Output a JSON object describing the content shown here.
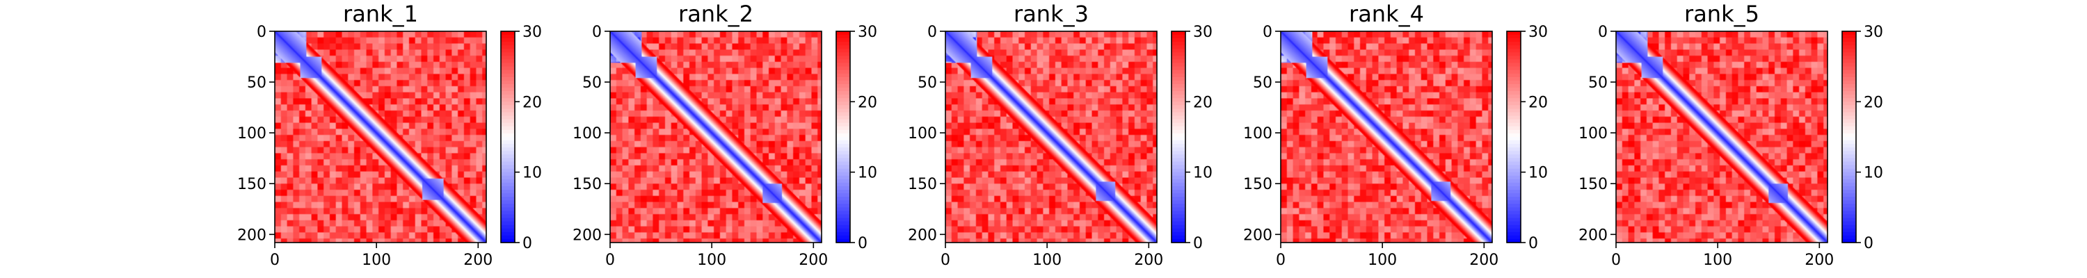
{
  "figure": {
    "background": "#ffffff"
  },
  "colormap": {
    "name": "bwr",
    "vmin": 0,
    "vmax": 30,
    "low_color": "#0000ff",
    "mid_color": "#ffffff",
    "high_color": "#ff0000",
    "ticks": [
      "0",
      "10",
      "20",
      "30"
    ]
  },
  "chart_data": [
    {
      "type": "heatmap",
      "title": "rank_1",
      "size": 208,
      "xlim": [
        0,
        208
      ],
      "ylim": [
        208,
        0
      ],
      "xticks": [
        "0",
        "100",
        "200"
      ],
      "yticks": [
        "0",
        "50",
        "100",
        "150",
        "200"
      ],
      "colorbar": {
        "vmin": 0,
        "vmax": 30,
        "ticks": [
          "0",
          "10",
          "20",
          "30"
        ]
      },
      "domains": [
        [
          0,
          30
        ],
        [
          25,
          45
        ],
        [
          145,
          165
        ]
      ],
      "diagonal_value": 2,
      "band_width": 6,
      "off_diagonal_value": 30
    },
    {
      "type": "heatmap",
      "title": "rank_2",
      "size": 208,
      "xlim": [
        0,
        208
      ],
      "ylim": [
        208,
        0
      ],
      "xticks": [
        "0",
        "100",
        "200"
      ],
      "yticks": [
        "0",
        "50",
        "100",
        "150",
        "200"
      ],
      "colorbar": {
        "vmin": 0,
        "vmax": 30,
        "ticks": [
          "0",
          "10",
          "20",
          "30"
        ]
      },
      "domains": [
        [
          0,
          30
        ],
        [
          25,
          45
        ],
        [
          150,
          168
        ]
      ],
      "diagonal_value": 2,
      "band_width": 6,
      "off_diagonal_value": 30
    },
    {
      "type": "heatmap",
      "title": "rank_3",
      "size": 208,
      "xlim": [
        0,
        208
      ],
      "ylim": [
        208,
        0
      ],
      "xticks": [
        "0",
        "100",
        "200"
      ],
      "yticks": [
        "0",
        "50",
        "100",
        "150",
        "200"
      ],
      "colorbar": {
        "vmin": 0,
        "vmax": 30,
        "ticks": [
          "0",
          "10",
          "20",
          "30"
        ]
      },
      "domains": [
        [
          0,
          30
        ],
        [
          25,
          45
        ],
        [
          148,
          166
        ]
      ],
      "diagonal_value": 2,
      "band_width": 6,
      "off_diagonal_value": 30
    },
    {
      "type": "heatmap",
      "title": "rank_4",
      "size": 208,
      "xlim": [
        0,
        208
      ],
      "ylim": [
        208,
        0
      ],
      "xticks": [
        "0",
        "100",
        "200"
      ],
      "yticks": [
        "0",
        "50",
        "100",
        "150",
        "200"
      ],
      "colorbar": {
        "vmin": 0,
        "vmax": 30,
        "ticks": [
          "0",
          "10",
          "20",
          "30"
        ]
      },
      "domains": [
        [
          0,
          30
        ],
        [
          25,
          45
        ],
        [
          148,
          166
        ]
      ],
      "diagonal_value": 2,
      "band_width": 6,
      "off_diagonal_value": 30
    },
    {
      "type": "heatmap",
      "title": "rank_5",
      "size": 208,
      "xlim": [
        0,
        208
      ],
      "ylim": [
        208,
        0
      ],
      "xticks": [
        "0",
        "100",
        "200"
      ],
      "yticks": [
        "0",
        "50",
        "100",
        "150",
        "200"
      ],
      "colorbar": {
        "vmin": 0,
        "vmax": 30,
        "ticks": [
          "0",
          "10",
          "20",
          "30"
        ]
      },
      "domains": [
        [
          0,
          30
        ],
        [
          25,
          45
        ],
        [
          150,
          168
        ]
      ],
      "diagonal_value": 2,
      "band_width": 6,
      "off_diagonal_value": 30
    }
  ]
}
